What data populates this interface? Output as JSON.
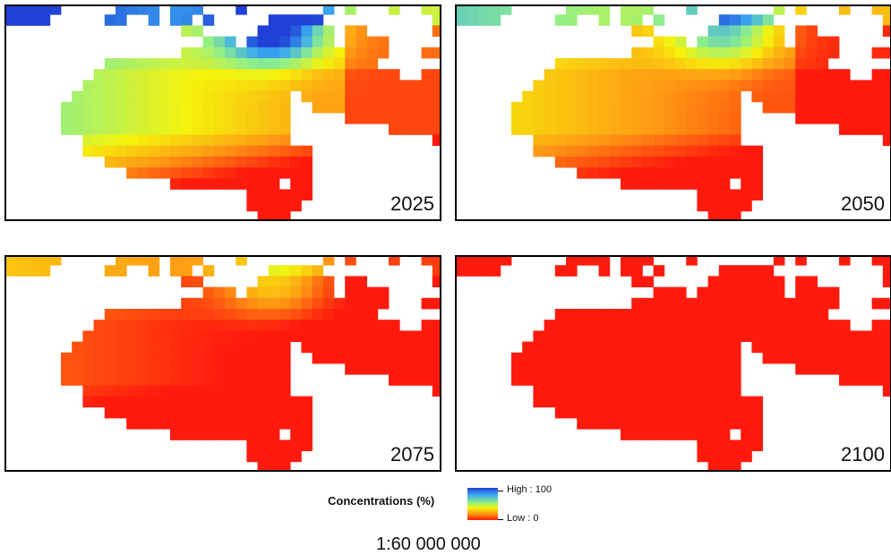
{
  "panels": [
    {
      "year": "2025",
      "palette": "early"
    },
    {
      "year": "2050",
      "palette": "mid"
    },
    {
      "year": "2075",
      "palette": "late"
    },
    {
      "year": "2100",
      "palette": "end"
    }
  ],
  "legend": {
    "title": "Concentrations (%)",
    "high_label": "High : 100",
    "low_label": "Low : 0",
    "ramp_colors": [
      "#1f3fd6",
      "#3aa8f0",
      "#8ff08a",
      "#f5f20c",
      "#ff9a14",
      "#ff1a0d"
    ]
  },
  "scale": "1:60 000 000"
}
